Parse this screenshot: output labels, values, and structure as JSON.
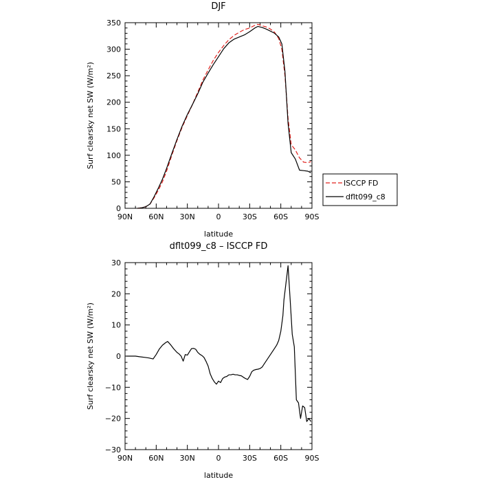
{
  "chart_data": [
    {
      "type": "line",
      "title": "DJF",
      "xlabel": "latitude",
      "ylabel": "Surf clearsky net SW (W/m²)",
      "xlim": [
        -90,
        90
      ],
      "ylim": [
        0,
        350
      ],
      "x_ticks": [
        -90,
        -60,
        -30,
        0,
        30,
        60,
        90
      ],
      "x_tick_labels": [
        "90N",
        "60N",
        "30N",
        "0",
        "30S",
        "60S",
        "90S"
      ],
      "y_ticks": [
        0,
        50,
        100,
        150,
        200,
        250,
        300,
        350
      ],
      "y_tick_labels": [
        "0",
        "50",
        "100",
        "150",
        "200",
        "250",
        "300",
        "350"
      ],
      "legend_position": "right",
      "series": [
        {
          "name": "ISCCP FD",
          "color": "#e0201b",
          "dash": "dashed",
          "x": [
            -78,
            -74,
            -70,
            -66,
            -62,
            -58,
            -54,
            -50,
            -45,
            -40,
            -35,
            -30,
            -25,
            -20,
            -15,
            -10,
            -5,
            0,
            5,
            10,
            15,
            20,
            25,
            30,
            35,
            38,
            42,
            46,
            50,
            54,
            58,
            61,
            64,
            67,
            70,
            74,
            78,
            82,
            86,
            89
          ],
          "y": [
            0,
            1,
            3,
            8,
            20,
            34,
            50,
            70,
            100,
            128,
            153,
            175,
            196,
            219,
            242,
            261,
            279,
            294,
            307,
            318,
            326,
            332,
            337,
            340,
            345,
            347,
            344,
            342,
            338,
            332,
            320,
            300,
            250,
            170,
            120,
            110,
            95,
            87,
            86,
            88
          ]
        },
        {
          "name": "dflt099_c8",
          "color": "#000000",
          "dash": "solid",
          "x": [
            -78,
            -74,
            -70,
            -66,
            -62,
            -58,
            -54,
            -50,
            -45,
            -40,
            -35,
            -30,
            -25,
            -20,
            -15,
            -10,
            -5,
            0,
            5,
            10,
            15,
            20,
            25,
            30,
            35,
            38,
            42,
            46,
            50,
            54,
            58,
            61,
            64,
            67,
            70,
            74,
            78,
            82,
            86,
            89
          ],
          "y": [
            0,
            1,
            3,
            8,
            22,
            38,
            55,
            75,
            103,
            130,
            155,
            177,
            196,
            216,
            238,
            255,
            271,
            286,
            301,
            312,
            319,
            323,
            327,
            333,
            340,
            343,
            341,
            338,
            334,
            330,
            323,
            310,
            258,
            160,
            105,
            93,
            72,
            71,
            70,
            67
          ]
        }
      ]
    },
    {
      "type": "line",
      "title": "dflt099_c8 – ISCCP FD",
      "xlabel": "latitude",
      "ylabel": "Surf clearsky net SW (W/m²)",
      "xlim": [
        -90,
        90
      ],
      "ylim": [
        -30,
        30
      ],
      "x_ticks": [
        -90,
        -60,
        -30,
        0,
        30,
        60,
        90
      ],
      "x_tick_labels": [
        "90N",
        "60N",
        "30N",
        "0",
        "30S",
        "60S",
        "90S"
      ],
      "y_ticks": [
        -30,
        -20,
        -10,
        0,
        10,
        20,
        30
      ],
      "y_tick_labels": [
        "−30",
        "−20",
        "−10",
        "0",
        "10",
        "20",
        "30"
      ],
      "series": [
        {
          "color": "#000000",
          "x": [
            -89,
            -84,
            -80,
            -76,
            -71,
            -67,
            -63,
            -60,
            -57,
            -54,
            -51,
            -49,
            -46,
            -43,
            -40,
            -38,
            -36,
            -34,
            -32,
            -30,
            -28,
            -26,
            -24,
            -22,
            -20,
            -18,
            -16,
            -14,
            -12,
            -10,
            -8,
            -6,
            -4,
            -2,
            0,
            2,
            4,
            6,
            8,
            10,
            12,
            14,
            16,
            18,
            20,
            22,
            24,
            26,
            28,
            30,
            32,
            34,
            36,
            38,
            40,
            42,
            44,
            46,
            48,
            50,
            52,
            54,
            56,
            58,
            60,
            62,
            63,
            65,
            67,
            69,
            71,
            73,
            75,
            77,
            79,
            81,
            83,
            85,
            87,
            89
          ],
          "y": [
            0,
            0,
            0,
            -0.2,
            -0.4,
            -0.6,
            -0.9,
            0.5,
            2.3,
            3.5,
            4.3,
            4.7,
            3.6,
            2.3,
            1.2,
            0.7,
            0,
            -1.6,
            0.5,
            0.3,
            1.4,
            2.4,
            2.5,
            2.2,
            1.2,
            0.6,
            0.2,
            -0.4,
            -1.7,
            -3.2,
            -5.7,
            -7.2,
            -8.3,
            -9.0,
            -8.0,
            -8.5,
            -7.2,
            -6.7,
            -6.5,
            -6.0,
            -6.0,
            -5.8,
            -6.0,
            -6.0,
            -6.2,
            -6.3,
            -6.8,
            -7.2,
            -7.5,
            -6.5,
            -5.0,
            -4.5,
            -4.3,
            -4.2,
            -4.0,
            -3.5,
            -2.5,
            -1.5,
            -0.5,
            0.5,
            1.5,
            2.5,
            3.5,
            5.0,
            8.0,
            13.0,
            18.0,
            23.5,
            29.0,
            18.0,
            7.0,
            3.0,
            -14.0,
            -15.0,
            -20.0,
            -16.0,
            -16.5,
            -21.0,
            -20.0,
            -21.0
          ]
        }
      ]
    }
  ]
}
